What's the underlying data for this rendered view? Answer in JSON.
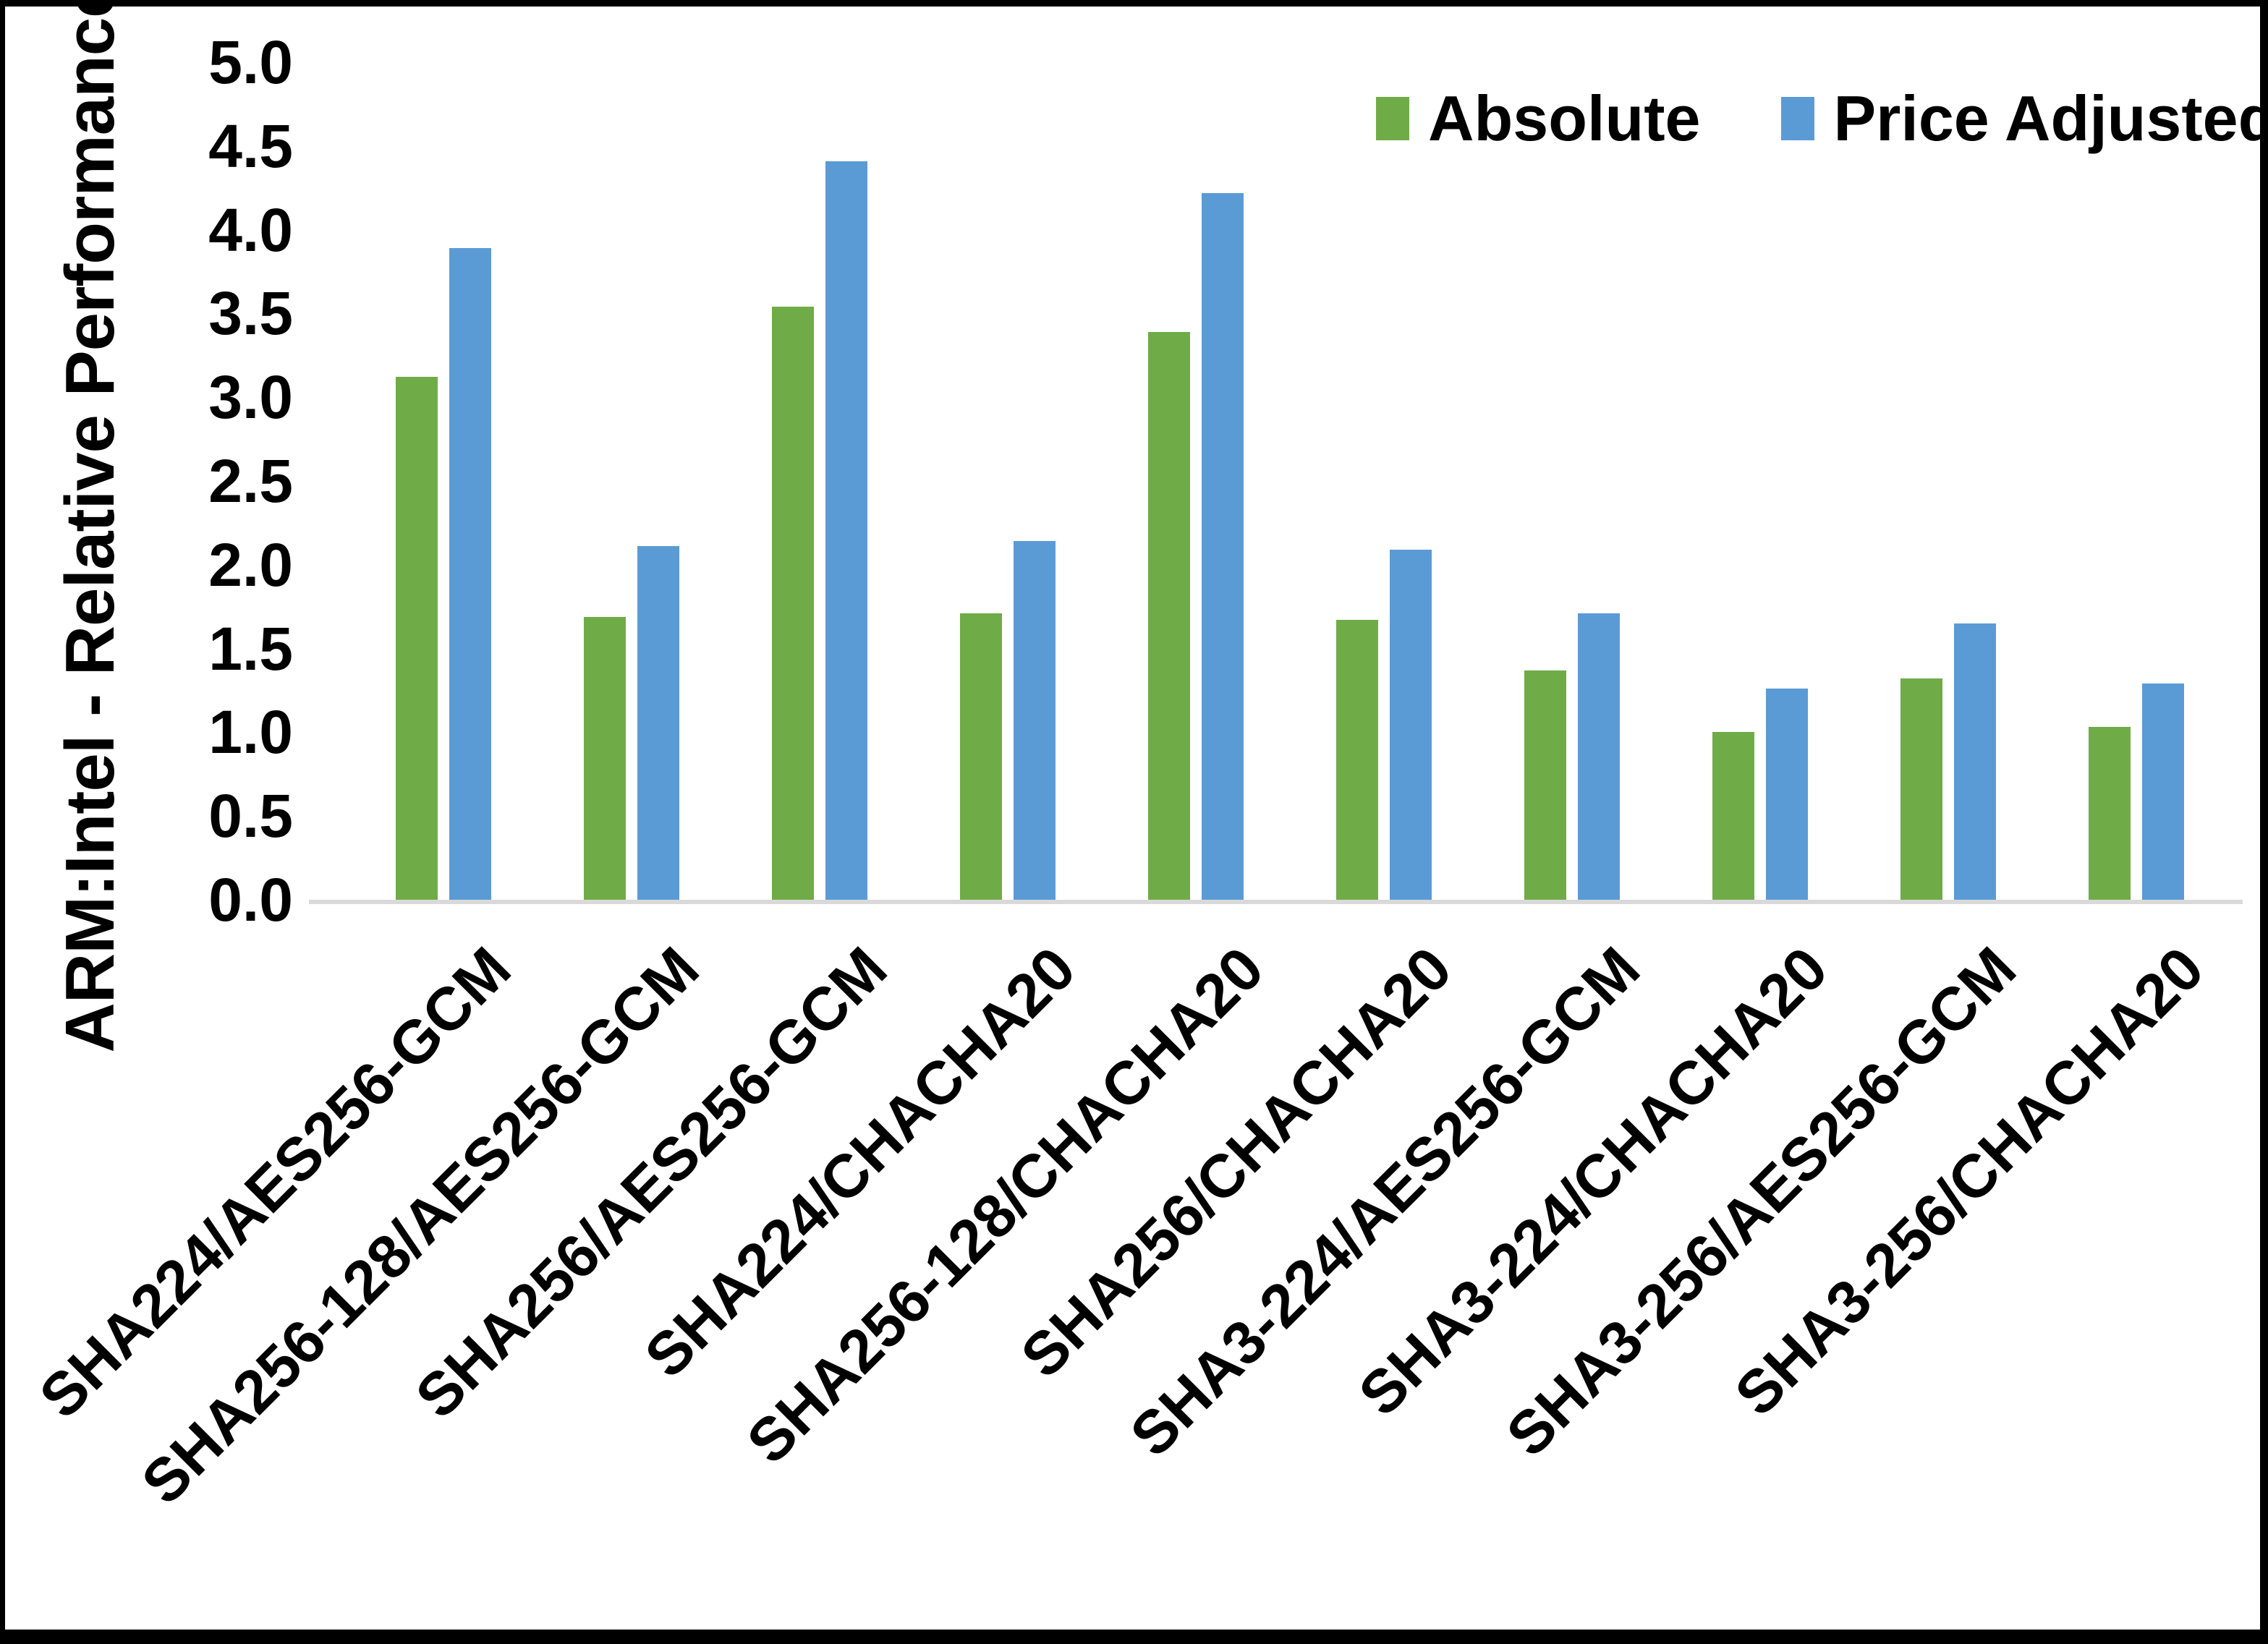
{
  "chart_data": {
    "type": "bar",
    "title": "",
    "xlabel": "",
    "ylabel": "ARM:Intel - Relative Performance",
    "ylim": [
      0.0,
      5.0
    ],
    "ytick_step": 0.5,
    "yticks": [
      "0.0",
      "0.5",
      "1.0",
      "1.5",
      "2.0",
      "2.5",
      "3.0",
      "3.5",
      "4.0",
      "4.5",
      "5.0"
    ],
    "grid": false,
    "legend_position": "top-right",
    "categories": [
      "SHA224/AES256-GCM",
      "SHA256-128/AES256-GCM",
      "SHA256/AES256-GCM",
      "SHA224/CHACHA20",
      "SHA256-128/CHACHA20",
      "SHA256/CHACHA20",
      "SHA3-224/AES256-GCM",
      "SHA3-224/CHACHA20",
      "SHA3-256/AES256-GCM",
      "SHA3-256/CHACHA20"
    ],
    "series": [
      {
        "name": "Absolute",
        "color": "#6FAC47",
        "values": [
          3.12,
          1.69,
          3.54,
          1.71,
          3.39,
          1.67,
          1.37,
          1.0,
          1.32,
          1.03
        ]
      },
      {
        "name": "Price Adjusted",
        "color": "#5B9BD5",
        "values": [
          3.89,
          2.11,
          4.41,
          2.14,
          4.22,
          2.09,
          1.71,
          1.26,
          1.65,
          1.29
        ]
      }
    ],
    "axis_line_color": "#d9d9d9"
  }
}
